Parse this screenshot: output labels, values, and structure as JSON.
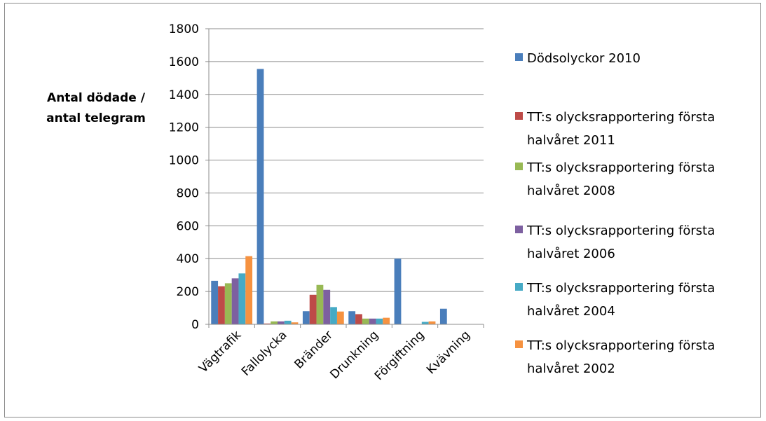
{
  "chart_data": {
    "type": "bar",
    "ylabel_lines": [
      "Antal dödade /",
      "antal telegram"
    ],
    "categories": [
      "Vägtrafik",
      "Fallolycka",
      "Bränder",
      "Drunkning",
      "Förgiftning",
      "Kvävning"
    ],
    "ylim": [
      0,
      1800
    ],
    "yticks": [
      0,
      200,
      400,
      600,
      800,
      1000,
      1200,
      1400,
      1600,
      1800
    ],
    "grid": true,
    "legend_position": "right",
    "series": [
      {
        "name": "Dödsolyckor 2010",
        "label_lines": [
          "Dödsolyckor 2010"
        ],
        "color": "#4a7ebb",
        "values": [
          265,
          1555,
          80,
          80,
          400,
          95
        ]
      },
      {
        "name": "TT:s olycksrapportering första halvåret 2011",
        "label_lines": [
          "TT:s olycksrapportering första",
          "halvåret 2011"
        ],
        "color": "#be4b48",
        "values": [
          232,
          5,
          180,
          62,
          0,
          0
        ]
      },
      {
        "name": "TT:s olycksrapportering första halvåret 2008",
        "label_lines": [
          "TT:s olycksrapportering första",
          "halvåret 2008"
        ],
        "color": "#98b954",
        "values": [
          250,
          18,
          240,
          35,
          0,
          0
        ]
      },
      {
        "name": "TT:s olycksrapportering första halvåret 2006",
        "label_lines": [
          "TT:s olycksrapportering första",
          "halvåret 2006"
        ],
        "color": "#7d60a0",
        "values": [
          280,
          18,
          210,
          35,
          0,
          0
        ]
      },
      {
        "name": "TT:s olycksrapportering första halvåret 2004",
        "label_lines": [
          "TT:s olycksrapportering första",
          "halvåret 2004"
        ],
        "color": "#46aac5",
        "values": [
          310,
          22,
          105,
          35,
          15,
          0
        ]
      },
      {
        "name": "TT:s olycksrapportering första halvåret 2002",
        "label_lines": [
          "TT:s olycksrapportering första",
          "halvåret 2002"
        ],
        "color": "#f69240",
        "values": [
          415,
          12,
          78,
          40,
          18,
          0
        ]
      }
    ]
  }
}
